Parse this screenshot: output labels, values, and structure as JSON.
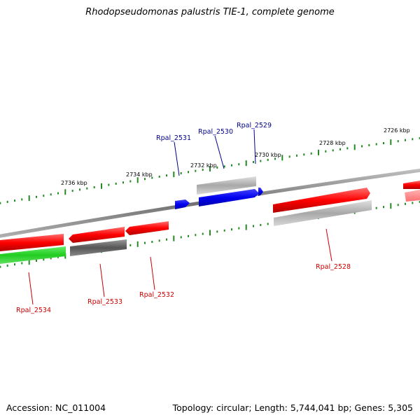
{
  "title": "Rhodopseudomonas palustris TIE-1, complete genome",
  "footer": {
    "accession": "Accession: NC_011004",
    "stats": "Topology: circular; Length: 5,744,041 bp; Genes: 5,305"
  },
  "colors": {
    "forward_cds": "#ff0000",
    "forward_pseudo": "#a8a8a8",
    "selected": "#0000ff",
    "reverse_rna": "#22cc22",
    "reverse_other": "#606060",
    "tick_dots": "#228b22",
    "backbone": "#8a8a8a",
    "label_top": "#00008b",
    "label_bottom": "#cc0000"
  },
  "axis_ticks": [
    {
      "label": "2736 kbp"
    },
    {
      "label": "2734 kbp"
    },
    {
      "label": "2732 kbp"
    },
    {
      "label": "2730 kbp"
    },
    {
      "label": "2728 kbp"
    },
    {
      "label": "2726 kbp"
    }
  ],
  "gene_labels": [
    {
      "name": "Rpal_2531",
      "color_key": "label_top"
    },
    {
      "name": "Rpal_2530",
      "color_key": "label_top"
    },
    {
      "name": "Rpal_2529",
      "color_key": "label_top"
    },
    {
      "name": "Rpal_2534",
      "color_key": "label_bottom"
    },
    {
      "name": "Rpal_2533",
      "color_key": "label_bottom"
    },
    {
      "name": "Rpal_2532",
      "color_key": "label_bottom"
    },
    {
      "name": "Rpal_2528",
      "color_key": "label_bottom"
    }
  ]
}
